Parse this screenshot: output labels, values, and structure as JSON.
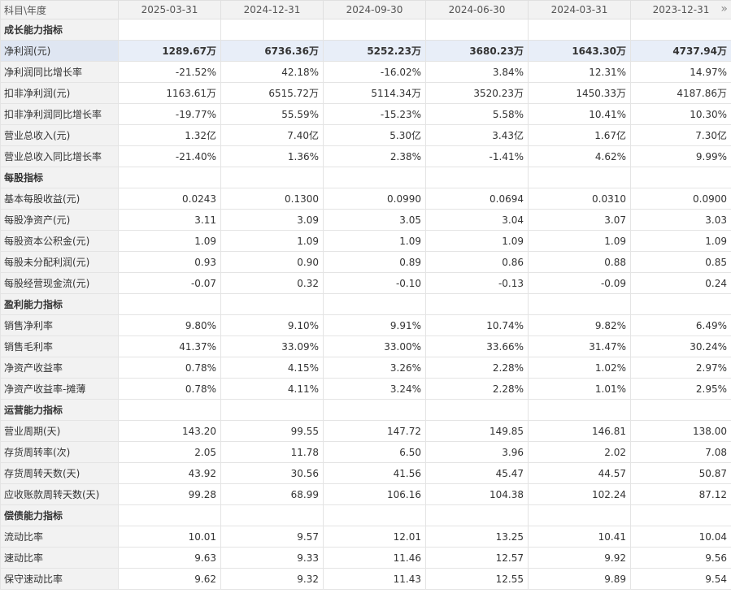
{
  "header": {
    "corner": "科目\\年度",
    "periods": [
      "2025-03-31",
      "2024-12-31",
      "2024-09-30",
      "2024-06-30",
      "2024-03-31",
      "2023-12-31"
    ],
    "more_icon": "»"
  },
  "sections": [
    {
      "title": "成长能力指标",
      "rows": [
        {
          "label": "净利润(元)",
          "values": [
            "1289.67万",
            "6736.36万",
            "5252.23万",
            "3680.23万",
            "1643.30万",
            "4737.94万"
          ],
          "highlight": true
        },
        {
          "label": "净利润同比增长率",
          "values": [
            "-21.52%",
            "42.18%",
            "-16.02%",
            "3.84%",
            "12.31%",
            "14.97%"
          ]
        },
        {
          "label": "扣非净利润(元)",
          "values": [
            "1163.61万",
            "6515.72万",
            "5114.34万",
            "3520.23万",
            "1450.33万",
            "4187.86万"
          ]
        },
        {
          "label": "扣非净利润同比增长率",
          "values": [
            "-19.77%",
            "55.59%",
            "-15.23%",
            "5.58%",
            "10.41%",
            "10.30%"
          ]
        },
        {
          "label": "营业总收入(元)",
          "values": [
            "1.32亿",
            "7.40亿",
            "5.30亿",
            "3.43亿",
            "1.67亿",
            "7.30亿"
          ]
        },
        {
          "label": "营业总收入同比增长率",
          "values": [
            "-21.40%",
            "1.36%",
            "2.38%",
            "-1.41%",
            "4.62%",
            "9.99%"
          ]
        }
      ]
    },
    {
      "title": "每股指标",
      "rows": [
        {
          "label": "基本每股收益(元)",
          "values": [
            "0.0243",
            "0.1300",
            "0.0990",
            "0.0694",
            "0.0310",
            "0.0900"
          ]
        },
        {
          "label": "每股净资产(元)",
          "values": [
            "3.11",
            "3.09",
            "3.05",
            "3.04",
            "3.07",
            "3.03"
          ]
        },
        {
          "label": "每股资本公积金(元)",
          "values": [
            "1.09",
            "1.09",
            "1.09",
            "1.09",
            "1.09",
            "1.09"
          ]
        },
        {
          "label": "每股未分配利润(元)",
          "values": [
            "0.93",
            "0.90",
            "0.89",
            "0.86",
            "0.88",
            "0.85"
          ]
        },
        {
          "label": "每股经营现金流(元)",
          "values": [
            "-0.07",
            "0.32",
            "-0.10",
            "-0.13",
            "-0.09",
            "0.24"
          ]
        }
      ]
    },
    {
      "title": "盈利能力指标",
      "rows": [
        {
          "label": "销售净利率",
          "values": [
            "9.80%",
            "9.10%",
            "9.91%",
            "10.74%",
            "9.82%",
            "6.49%"
          ]
        },
        {
          "label": "销售毛利率",
          "values": [
            "41.37%",
            "33.09%",
            "33.00%",
            "33.66%",
            "31.47%",
            "30.24%"
          ]
        },
        {
          "label": "净资产收益率",
          "values": [
            "0.78%",
            "4.15%",
            "3.26%",
            "2.28%",
            "1.02%",
            "2.97%"
          ]
        },
        {
          "label": "净资产收益率-摊薄",
          "values": [
            "0.78%",
            "4.11%",
            "3.24%",
            "2.28%",
            "1.01%",
            "2.95%"
          ]
        }
      ]
    },
    {
      "title": "运营能力指标",
      "rows": [
        {
          "label": "营业周期(天)",
          "values": [
            "143.20",
            "99.55",
            "147.72",
            "149.85",
            "146.81",
            "138.00"
          ]
        },
        {
          "label": "存货周转率(次)",
          "values": [
            "2.05",
            "11.78",
            "6.50",
            "3.96",
            "2.02",
            "7.08"
          ]
        },
        {
          "label": "存货周转天数(天)",
          "values": [
            "43.92",
            "30.56",
            "41.56",
            "45.47",
            "44.57",
            "50.87"
          ]
        },
        {
          "label": "应收账款周转天数(天)",
          "values": [
            "99.28",
            "68.99",
            "106.16",
            "104.38",
            "102.24",
            "87.12"
          ]
        }
      ]
    },
    {
      "title": "偿债能力指标",
      "rows": [
        {
          "label": "流动比率",
          "values": [
            "10.01",
            "9.57",
            "12.01",
            "13.25",
            "10.41",
            "10.04"
          ]
        },
        {
          "label": "速动比率",
          "values": [
            "9.63",
            "9.33",
            "11.46",
            "12.57",
            "9.92",
            "9.56"
          ]
        },
        {
          "label": "保守速动比率",
          "values": [
            "9.62",
            "9.32",
            "11.43",
            "12.55",
            "9.89",
            "9.54"
          ]
        }
      ]
    }
  ]
}
